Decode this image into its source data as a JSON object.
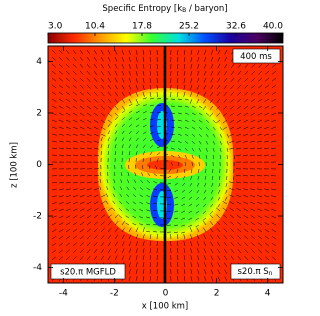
{
  "chart_data": {
    "type": "heatmap",
    "colorbar_label": {
      "pre": "Specific Entropy [k",
      "sub": "B",
      "post": " / baryon]"
    },
    "clim": [
      3,
      40
    ],
    "colorbar_ticks": [
      {
        "value": 3,
        "label": "3.0"
      },
      {
        "value": 10.4,
        "label": "10.4"
      },
      {
        "value": 17.8,
        "label": "17.8"
      },
      {
        "value": 25.2,
        "label": "25.2"
      },
      {
        "value": 32.6,
        "label": "32.6"
      },
      {
        "value": 40,
        "label": "40.0"
      }
    ],
    "colors": [
      "#8b0000",
      "#ff2a00",
      "#ff9a00",
      "#ffff00",
      "#33ff33",
      "#00e0e0",
      "#0050ff",
      "#1a00a0",
      "#4b0060",
      "#000000"
    ],
    "xlabel": "x [100 km]",
    "ylabel": "z [100 km]",
    "xlim": [
      -4.6,
      4.6
    ],
    "ylim": [
      -4.6,
      4.6
    ],
    "xticks": [
      -4,
      -2,
      0,
      2,
      4
    ],
    "yticks": [
      -4,
      -2,
      0,
      2,
      4
    ],
    "time_label": "400 ms",
    "left_label": "s20.π MGFLD",
    "right_label": {
      "pre": "s20.π S",
      "sub": "n"
    }
  }
}
